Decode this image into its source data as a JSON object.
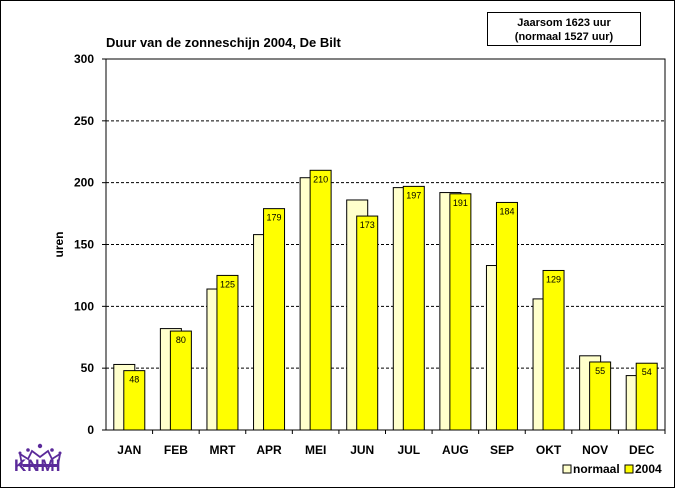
{
  "summary": {
    "line1": "Jaarsom 1623 uur",
    "line2": "(normaal 1527 uur)"
  },
  "logo": {
    "text": "KNMI",
    "icon": "crown-icon",
    "color": "#5b2a9a"
  },
  "chart_data": {
    "type": "bar",
    "title": "Duur van de zonneschijn 2004, De Bilt",
    "xlabel": "",
    "ylabel": "uren",
    "ylim": [
      0,
      300
    ],
    "yticks": [
      0,
      50,
      100,
      150,
      200,
      250,
      300
    ],
    "grid": "horizontal dashed",
    "legend_position": "bottom-right",
    "categories": [
      "JAN",
      "FEB",
      "MRT",
      "APR",
      "MEI",
      "JUN",
      "JUL",
      "AUG",
      "SEP",
      "OKT",
      "NOV",
      "DEC"
    ],
    "series": [
      {
        "name": "normaal",
        "color": "#ffffcc",
        "values": [
          53,
          82,
          114,
          158,
          204,
          186,
          196,
          192,
          133,
          106,
          60,
          44
        ]
      },
      {
        "name": "2004",
        "color": "#ffff00",
        "values": [
          48,
          80,
          125,
          179,
          210,
          173,
          197,
          191,
          184,
          129,
          55,
          54
        ],
        "labels": [
          "48",
          "80",
          "125",
          "179",
          "210",
          "173",
          "197",
          "191",
          "184",
          "129",
          "55",
          "54"
        ]
      }
    ]
  }
}
